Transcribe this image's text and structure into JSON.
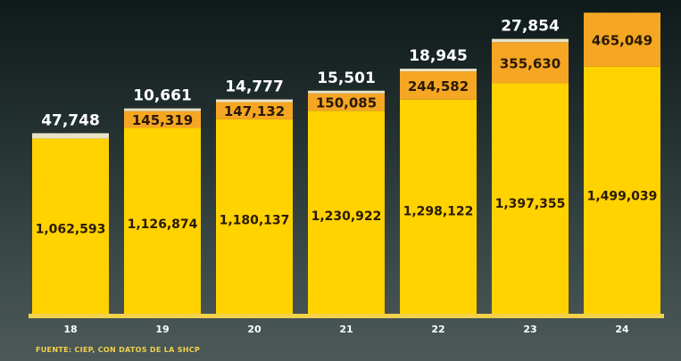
{
  "chart_data": {
    "type": "bar",
    "stacked": true,
    "categories": [
      "18",
      "19",
      "20",
      "21",
      "22",
      "23",
      "24"
    ],
    "series": [
      {
        "values": [
          1062593,
          1126874,
          1180137,
          1230922,
          1298122,
          1397355,
          1499039
        ],
        "color": "#ffd200"
      },
      {
        "values": [
          null,
          145319,
          147132,
          150085,
          244582,
          355630,
          465049
        ],
        "color": "#f5a623"
      },
      {
        "values": [
          47748,
          10661,
          14777,
          15501,
          18945,
          27854,
          null
        ],
        "color": "#e8e2c6"
      }
    ],
    "labels": {
      "bottom": [
        "1,062,593",
        "1,126,874",
        "1,180,137",
        "1,230,922",
        "1,298,122",
        "1,397,355",
        "1,499,039"
      ],
      "middle": [
        "",
        "145,319",
        "147,132",
        "150,085",
        "244,582",
        "355,630",
        "465,049"
      ],
      "top": [
        "47,748",
        "10,661",
        "14,777",
        "15,501",
        "18,945",
        "27,854",
        ""
      ]
    },
    "xlabel": "",
    "ylabel": "",
    "grid": false,
    "legend": false
  },
  "source": "FUENTE: CIEP, CON DATOS DE LA SHCP",
  "colors": {
    "background": "#2e3b3b",
    "axis": "#f2d24a"
  }
}
